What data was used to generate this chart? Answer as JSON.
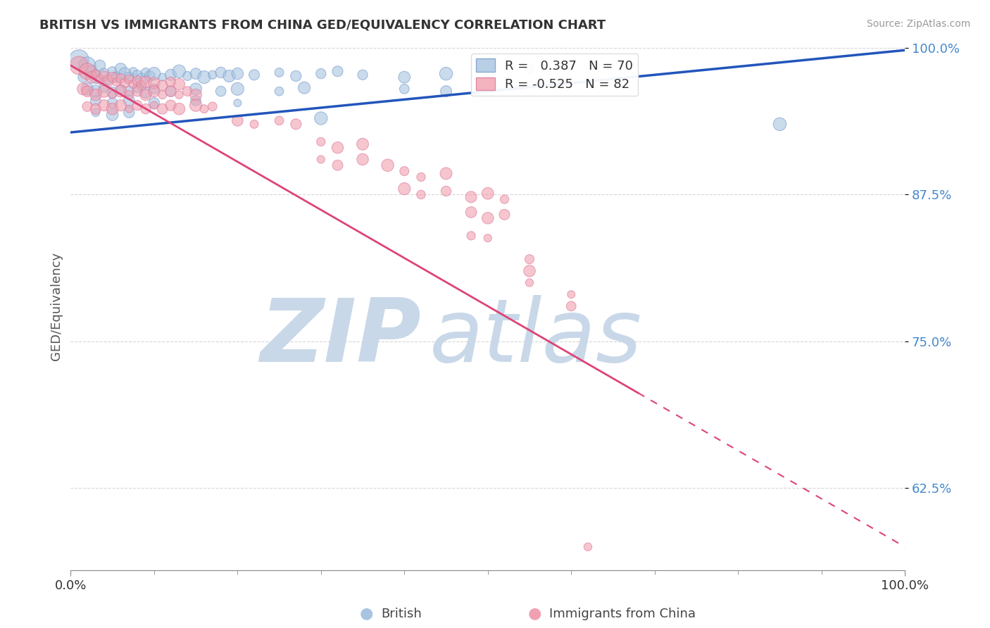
{
  "title": "BRITISH VS IMMIGRANTS FROM CHINA GED/EQUIVALENCY CORRELATION CHART",
  "source": "Source: ZipAtlas.com",
  "ylabel": "GED/Equivalency",
  "blue_R": 0.387,
  "blue_N": 70,
  "pink_R": -0.525,
  "pink_N": 82,
  "blue_color": "#A8C4E0",
  "pink_color": "#F0A0B0",
  "blue_line_color": "#2255BB",
  "pink_line_color": "#DD4477",
  "ytick_color": "#4488CC",
  "watermark_zip": "ZIP",
  "watermark_atlas": "atlas",
  "watermark_color": "#C8D8E8",
  "legend_blue": "British",
  "legend_pink": "Immigrants from China",
  "blue_scatter": [
    [
      0.01,
      0.99
    ],
    [
      0.02,
      0.985
    ],
    [
      0.015,
      0.975
    ],
    [
      0.025,
      0.98
    ],
    [
      0.03,
      0.975
    ],
    [
      0.035,
      0.985
    ],
    [
      0.04,
      0.978
    ],
    [
      0.045,
      0.972
    ],
    [
      0.05,
      0.98
    ],
    [
      0.055,
      0.975
    ],
    [
      0.06,
      0.982
    ],
    [
      0.065,
      0.978
    ],
    [
      0.07,
      0.975
    ],
    [
      0.075,
      0.98
    ],
    [
      0.08,
      0.977
    ],
    [
      0.085,
      0.973
    ],
    [
      0.09,
      0.979
    ],
    [
      0.095,
      0.976
    ],
    [
      0.1,
      0.978
    ],
    [
      0.11,
      0.975
    ],
    [
      0.12,
      0.977
    ],
    [
      0.13,
      0.98
    ],
    [
      0.14,
      0.976
    ],
    [
      0.15,
      0.978
    ],
    [
      0.16,
      0.975
    ],
    [
      0.17,
      0.977
    ],
    [
      0.18,
      0.979
    ],
    [
      0.19,
      0.976
    ],
    [
      0.2,
      0.978
    ],
    [
      0.22,
      0.977
    ],
    [
      0.25,
      0.979
    ],
    [
      0.27,
      0.976
    ],
    [
      0.3,
      0.978
    ],
    [
      0.32,
      0.98
    ],
    [
      0.35,
      0.977
    ],
    [
      0.02,
      0.965
    ],
    [
      0.03,
      0.963
    ],
    [
      0.04,
      0.966
    ],
    [
      0.05,
      0.962
    ],
    [
      0.06,
      0.965
    ],
    [
      0.07,
      0.963
    ],
    [
      0.08,
      0.966
    ],
    [
      0.09,
      0.962
    ],
    [
      0.1,
      0.965
    ],
    [
      0.12,
      0.963
    ],
    [
      0.15,
      0.965
    ],
    [
      0.18,
      0.963
    ],
    [
      0.2,
      0.965
    ],
    [
      0.25,
      0.963
    ],
    [
      0.28,
      0.966
    ],
    [
      0.03,
      0.955
    ],
    [
      0.05,
      0.953
    ],
    [
      0.07,
      0.955
    ],
    [
      0.1,
      0.953
    ],
    [
      0.15,
      0.955
    ],
    [
      0.2,
      0.953
    ],
    [
      0.03,
      0.945
    ],
    [
      0.05,
      0.943
    ],
    [
      0.07,
      0.945
    ],
    [
      0.4,
      0.975
    ],
    [
      0.45,
      0.978
    ],
    [
      0.5,
      0.98
    ],
    [
      0.55,
      0.982
    ],
    [
      0.4,
      0.965
    ],
    [
      0.45,
      0.963
    ],
    [
      0.5,
      0.966
    ],
    [
      0.85,
      0.935
    ],
    [
      0.3,
      0.94
    ]
  ],
  "pink_scatter": [
    [
      0.01,
      0.985
    ],
    [
      0.02,
      0.98
    ],
    [
      0.025,
      0.975
    ],
    [
      0.03,
      0.978
    ],
    [
      0.035,
      0.973
    ],
    [
      0.04,
      0.976
    ],
    [
      0.045,
      0.972
    ],
    [
      0.05,
      0.975
    ],
    [
      0.055,
      0.971
    ],
    [
      0.06,
      0.974
    ],
    [
      0.065,
      0.97
    ],
    [
      0.07,
      0.973
    ],
    [
      0.075,
      0.969
    ],
    [
      0.08,
      0.972
    ],
    [
      0.085,
      0.968
    ],
    [
      0.09,
      0.971
    ],
    [
      0.1,
      0.97
    ],
    [
      0.11,
      0.968
    ],
    [
      0.12,
      0.971
    ],
    [
      0.13,
      0.969
    ],
    [
      0.015,
      0.965
    ],
    [
      0.02,
      0.963
    ],
    [
      0.03,
      0.96
    ],
    [
      0.04,
      0.963
    ],
    [
      0.05,
      0.96
    ],
    [
      0.06,
      0.963
    ],
    [
      0.07,
      0.96
    ],
    [
      0.08,
      0.963
    ],
    [
      0.09,
      0.96
    ],
    [
      0.1,
      0.963
    ],
    [
      0.11,
      0.96
    ],
    [
      0.12,
      0.963
    ],
    [
      0.13,
      0.96
    ],
    [
      0.14,
      0.963
    ],
    [
      0.15,
      0.96
    ],
    [
      0.02,
      0.95
    ],
    [
      0.03,
      0.948
    ],
    [
      0.04,
      0.951
    ],
    [
      0.05,
      0.948
    ],
    [
      0.06,
      0.951
    ],
    [
      0.07,
      0.948
    ],
    [
      0.08,
      0.951
    ],
    [
      0.09,
      0.948
    ],
    [
      0.1,
      0.951
    ],
    [
      0.11,
      0.948
    ],
    [
      0.12,
      0.951
    ],
    [
      0.13,
      0.948
    ],
    [
      0.15,
      0.951
    ],
    [
      0.16,
      0.948
    ],
    [
      0.17,
      0.95
    ],
    [
      0.2,
      0.938
    ],
    [
      0.22,
      0.935
    ],
    [
      0.25,
      0.938
    ],
    [
      0.27,
      0.935
    ],
    [
      0.3,
      0.92
    ],
    [
      0.32,
      0.915
    ],
    [
      0.35,
      0.918
    ],
    [
      0.3,
      0.905
    ],
    [
      0.32,
      0.9
    ],
    [
      0.35,
      0.905
    ],
    [
      0.38,
      0.9
    ],
    [
      0.4,
      0.895
    ],
    [
      0.42,
      0.89
    ],
    [
      0.45,
      0.893
    ],
    [
      0.4,
      0.88
    ],
    [
      0.42,
      0.875
    ],
    [
      0.45,
      0.878
    ],
    [
      0.48,
      0.873
    ],
    [
      0.5,
      0.876
    ],
    [
      0.52,
      0.871
    ],
    [
      0.48,
      0.86
    ],
    [
      0.5,
      0.855
    ],
    [
      0.52,
      0.858
    ],
    [
      0.48,
      0.84
    ],
    [
      0.5,
      0.838
    ],
    [
      0.55,
      0.82
    ],
    [
      0.55,
      0.81
    ],
    [
      0.55,
      0.8
    ],
    [
      0.6,
      0.79
    ],
    [
      0.6,
      0.78
    ],
    [
      0.62,
      0.575
    ]
  ],
  "blue_line": {
    "x0": 0.0,
    "y0": 0.928,
    "x1": 1.0,
    "y1": 0.998
  },
  "pink_line": {
    "x0": 0.0,
    "y0": 0.985,
    "x1": 1.0,
    "y1": 0.575
  },
  "pink_line_solid_end_x": 0.68,
  "xlim": [
    0.0,
    1.0
  ],
  "ylim": [
    0.555,
    1.005
  ],
  "yticks": [
    0.625,
    0.75,
    0.875,
    1.0
  ],
  "ytick_labels": [
    "62.5%",
    "75.0%",
    "87.5%",
    "100.0%"
  ]
}
